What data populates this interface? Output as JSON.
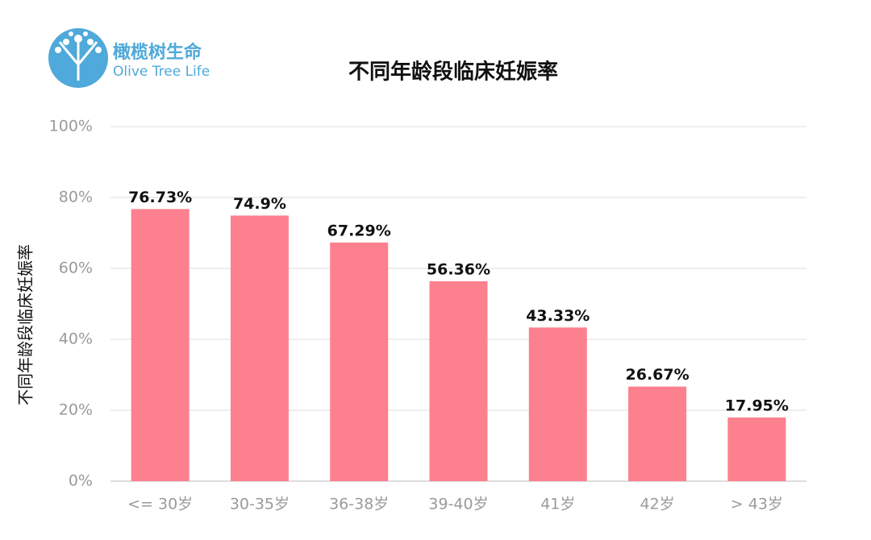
{
  "logo": {
    "name": "橄榄树生命",
    "subtitle": "Olive Tree Life"
  },
  "chart_data": {
    "type": "bar",
    "title": "不同年龄段临床妊娠率",
    "y_label": "不同年龄段临床妊娠率",
    "categories": [
      "<= 30岁",
      "30-35岁",
      "36-38岁",
      "39-40岁",
      "41岁",
      "42岁",
      "> 43岁"
    ],
    "values": [
      76.73,
      74.9,
      67.29,
      56.36,
      43.33,
      26.67,
      17.95
    ],
    "value_labels": [
      "76.73%",
      "74.9%",
      "67.29%",
      "56.36%",
      "43.33%",
      "26.67%",
      "17.95%"
    ],
    "color": "#fd808e",
    "ylim": [
      0,
      100
    ],
    "yticks": [
      {
        "value": 0,
        "label": "0%"
      },
      {
        "value": 20,
        "label": "20%"
      },
      {
        "value": 40,
        "label": "40%"
      },
      {
        "value": 60,
        "label": "60%"
      },
      {
        "value": 80,
        "label": "80%"
      },
      {
        "value": 100,
        "label": "100%"
      }
    ],
    "grid": true
  }
}
